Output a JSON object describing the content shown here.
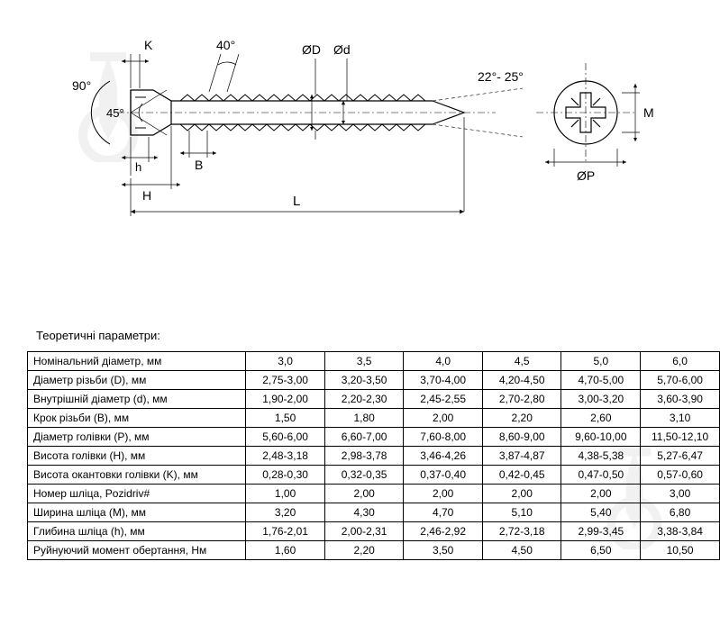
{
  "diagram_labels": {
    "angle90": "90°",
    "angle45": "45°",
    "angle40": "40°",
    "angleTip": "22°- 25°",
    "K": "K",
    "h": "h",
    "H": "H",
    "B": "B",
    "L": "L",
    "D": "ØD",
    "d": "Ød",
    "M": "M",
    "P": "ØP"
  },
  "table_title": "Теоретичні параметри:",
  "columns": [
    "3,0",
    "3,5",
    "4,0",
    "4,5",
    "5,0",
    "6,0"
  ],
  "rows": [
    {
      "label": "Номінальний діаметр, мм",
      "values": [
        "3,0",
        "3,5",
        "4,0",
        "4,5",
        "5,0",
        "6,0"
      ]
    },
    {
      "label": "Діаметр різьби (D), мм",
      "values": [
        "2,75-3,00",
        "3,20-3,50",
        "3,70-4,00",
        "4,20-4,50",
        "4,70-5,00",
        "5,70-6,00"
      ]
    },
    {
      "label": "Внутрішній діаметр (d), мм",
      "values": [
        "1,90-2,00",
        "2,20-2,30",
        "2,45-2,55",
        "2,70-2,80",
        "3,00-3,20",
        "3,60-3,90"
      ]
    },
    {
      "label": "Крок різьби (B), мм",
      "values": [
        "1,50",
        "1,80",
        "2,00",
        "2,20",
        "2,60",
        "3,10"
      ]
    },
    {
      "label": "Діаметр голівки (P), мм",
      "values": [
        "5,60-6,00",
        "6,60-7,00",
        "7,60-8,00",
        "8,60-9,00",
        "9,60-10,00",
        "11,50-12,10"
      ]
    },
    {
      "label": "Висота голівки (H), мм",
      "values": [
        "2,48-3,18",
        "2,98-3,78",
        "3,46-4,26",
        "3,87-4,87",
        "4,38-5,38",
        "5,27-6,47"
      ]
    },
    {
      "label": "Висота окантовки голівки (K), мм",
      "values": [
        "0,28-0,30",
        "0,32-0,35",
        "0,37-0,40",
        "0,42-0,45",
        "0,47-0,50",
        "0,57-0,60"
      ]
    },
    {
      "label": "Номер шліца, Pozidriv#",
      "values": [
        "1,00",
        "2,00",
        "2,00",
        "2,00",
        "2,00",
        "3,00"
      ]
    },
    {
      "label": "Ширина шліца (M), мм",
      "values": [
        "3,20",
        "4,30",
        "4,70",
        "5,10",
        "5,40",
        "6,80"
      ]
    },
    {
      "label": "Глибина шліца (h), мм",
      "values": [
        "1,76-2,01",
        "2,00-2,31",
        "2,46-2,92",
        "2,72-3,18",
        "2,99-3,45",
        "3,38-3,84"
      ]
    },
    {
      "label": "Руйнуючий момент обертання, Нм",
      "values": [
        "1,60",
        "2,20",
        "3,50",
        "4,50",
        "6,50",
        "10,50"
      ]
    }
  ],
  "styling": {
    "font_family": "Arial",
    "table_font_size": 12,
    "title_font_size": 13,
    "diagram_label_font_size": 14,
    "line_color": "#000000",
    "background": "#ffffff",
    "border_color": "#000000",
    "watermark_opacity": 0.08
  }
}
